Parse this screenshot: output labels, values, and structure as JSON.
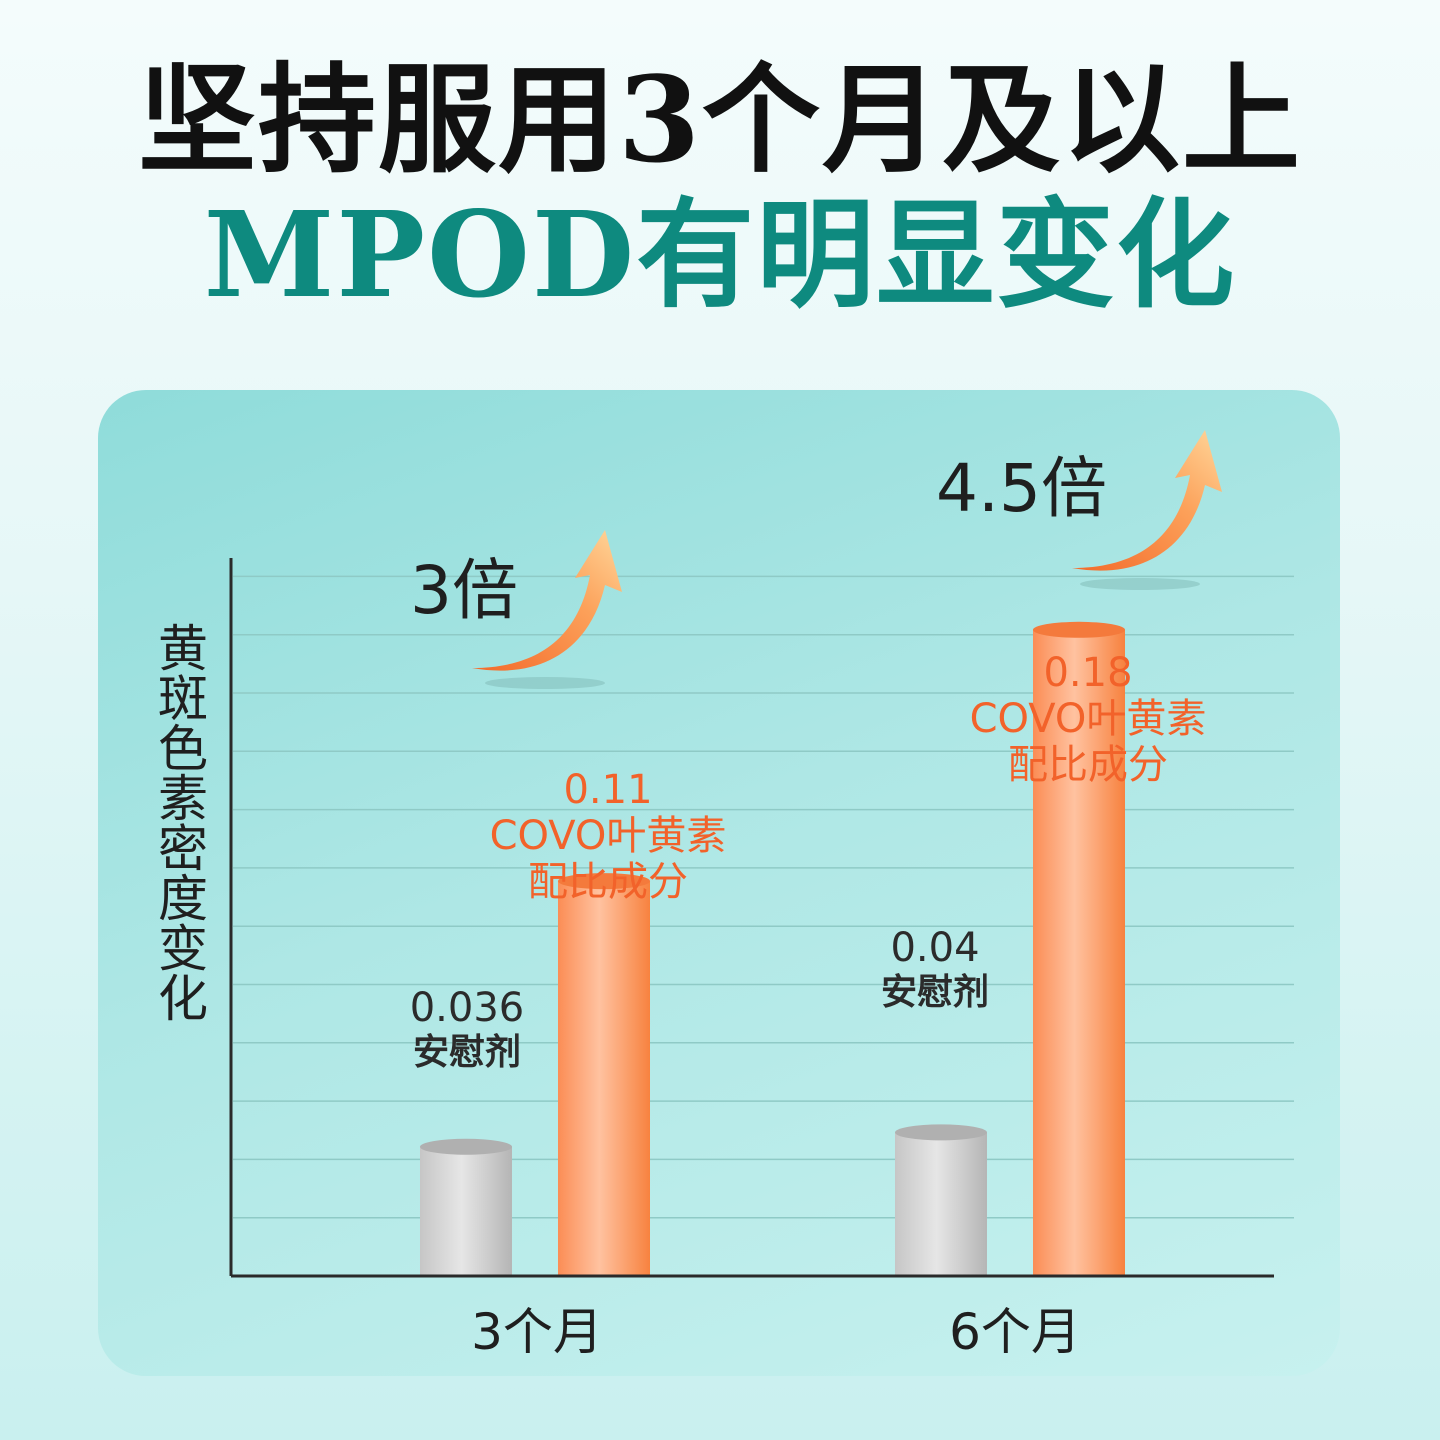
{
  "headline": {
    "line1": "坚持服用3个月及以上",
    "line2": "MPOD有明显变化"
  },
  "colors": {
    "headline_primary": "#111111",
    "headline_accent": "#0e8a7f",
    "placebo_bar": "#c9c9c9",
    "covo_bar": "#fa8a4f",
    "covo_label": "#f2622a"
  },
  "chart_data": {
    "type": "bar",
    "title": "",
    "xlabel": "",
    "ylabel": "黄斑色素密度变化",
    "categories": [
      "3个月",
      "6个月"
    ],
    "series": [
      {
        "name": "安慰剂",
        "values": [
          0.036,
          0.04
        ],
        "labels": [
          "0.036",
          "0.04"
        ]
      },
      {
        "name": "COVO叶黄素配比成分",
        "name_line1": "COVO叶黄素",
        "name_line2": "配比成分",
        "values": [
          0.11,
          0.18
        ],
        "labels": [
          "0.11",
          "0.18"
        ]
      }
    ],
    "ylim": [
      0,
      0.2
    ],
    "grid": true,
    "annotations": [
      "3倍",
      "4.5倍"
    ]
  }
}
